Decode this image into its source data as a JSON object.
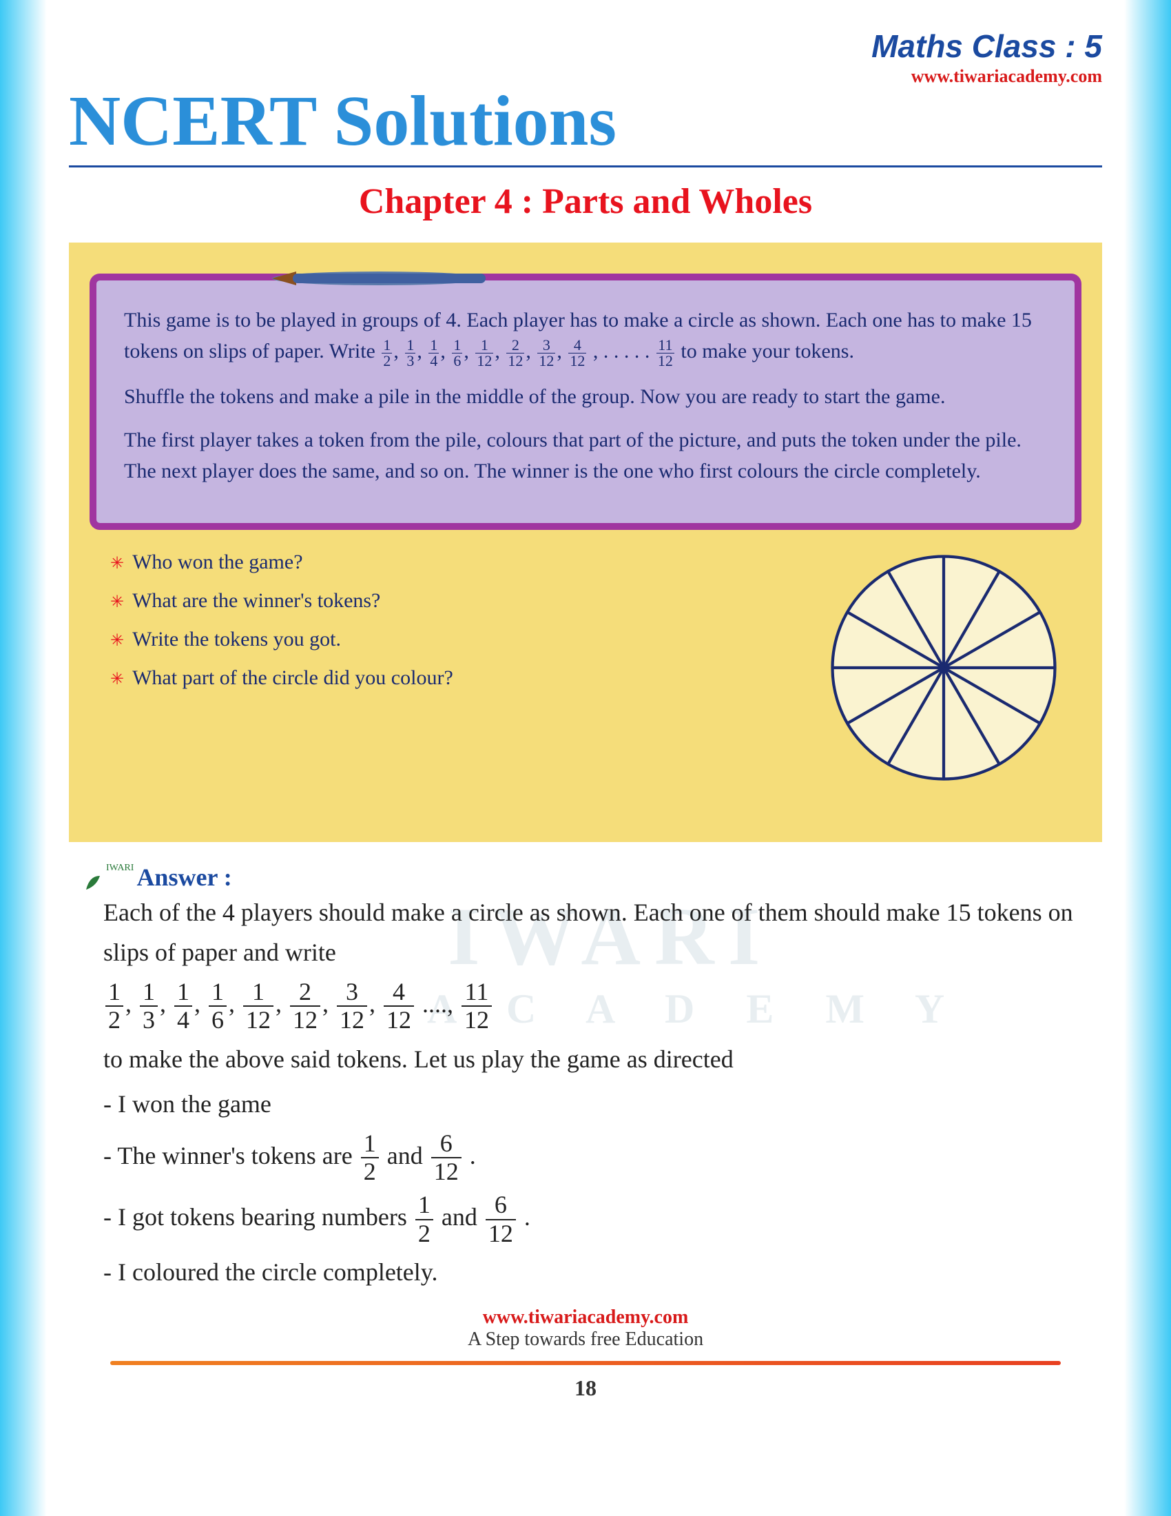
{
  "header": {
    "class_label": "Maths Class : 5",
    "site_link": "www.tiwariacademy.com",
    "main_title": "NCERT Solutions",
    "chapter_title": "Chapter 4 : Parts and Wholes"
  },
  "game_box": {
    "background_color": "#f5dd7a",
    "frame_border_color": "#a035a0",
    "frame_fill_color": "#c5b5e0",
    "text_color": "#1a2a70",
    "para1_a": "This game is to be played in groups of 4. Each player has to make a circle as shown. Each one has to make 15 tokens on slips of paper. Write ",
    "para1_b": " to make your tokens.",
    "fractions1": [
      {
        "n": "1",
        "d": "2"
      },
      {
        "n": "1",
        "d": "3"
      },
      {
        "n": "1",
        "d": "4"
      },
      {
        "n": "1",
        "d": "6"
      },
      {
        "n": "1",
        "d": "12"
      },
      {
        "n": "2",
        "d": "12"
      },
      {
        "n": "3",
        "d": "12"
      },
      {
        "n": "4",
        "d": "12"
      }
    ],
    "dots1": ", . . . . . ",
    "frac_last1": {
      "n": "11",
      "d": "12"
    },
    "para2": "Shuffle the tokens and make a pile in the middle of the group. Now you are ready to start the game.",
    "para3": "The first player takes a token from the pile, colours that part of the picture, and puts the token under the pile. The next player does the same, and so on. The winner is the one who first colours the circle completely.",
    "questions": [
      "Who won the game?",
      "What are the winner's tokens?",
      "Write the tokens you got.",
      "What part of the circle did you colour?"
    ],
    "circle": {
      "slices": 12,
      "stroke": "#1a2a70",
      "fill": "#faf3d0"
    }
  },
  "answer": {
    "label": "Answer :",
    "p1": "Each of the 4 players should make a circle as shown. Each one of them should make 15 tokens on slips of paper and write",
    "fractions": [
      {
        "n": "1",
        "d": "2"
      },
      {
        "n": "1",
        "d": "3"
      },
      {
        "n": "1",
        "d": "4"
      },
      {
        "n": "1",
        "d": "6"
      },
      {
        "n": "1",
        "d": "12"
      },
      {
        "n": "2",
        "d": "12"
      },
      {
        "n": "3",
        "d": "12"
      },
      {
        "n": "4",
        "d": "12"
      }
    ],
    "dots": "....,",
    "frac_last": {
      "n": "11",
      "d": "12"
    },
    "p2": "to make the above said tokens. Let us play the game as directed",
    "b1": "- I won the game",
    "b2a": "- The winner's tokens are ",
    "b2_f1": {
      "n": "1",
      "d": "2"
    },
    "b2_mid": "and",
    "b2_f2": {
      "n": "6",
      "d": "12"
    },
    "b2_end": ".",
    "b3a": "- I got tokens bearing numbers ",
    "b3_f1": {
      "n": "1",
      "d": "2"
    },
    "b3_mid": "and",
    "b3_f2": {
      "n": "6",
      "d": "12"
    },
    "b3_end": ".",
    "b4": "- I coloured the circle completely."
  },
  "watermark": {
    "wm1": "IWARI",
    "wm2": "A C A D E M Y"
  },
  "footer": {
    "link": "www.tiwariacademy.com",
    "tag": "A Step towards free Education",
    "page_num": "18",
    "divider_color": "#e85020"
  }
}
